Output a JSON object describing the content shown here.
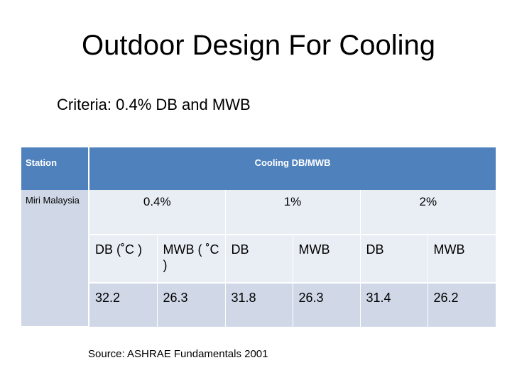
{
  "slide": {
    "title": "Outdoor Design For Cooling",
    "subtitle": "Criteria: 0.4% DB and  MWB",
    "source": "Source: ASHRAE Fundamentals 2001"
  },
  "table": {
    "header": {
      "station": "Station",
      "cooling": "Cooling  DB/MWB"
    },
    "station": "Miri Malaysia",
    "percentiles": [
      "0.4%",
      "1%",
      "2%"
    ],
    "subheaders": [
      "DB (˚C )",
      "MWB ( ˚C )",
      "DB",
      "MWB",
      "DB",
      "MWB"
    ],
    "values": [
      "32.2",
      "26.3",
      "31.8",
      "26.3",
      "31.4",
      "26.2"
    ]
  },
  "colors": {
    "header": "#4f81bd",
    "row_light": "#e9edf4",
    "row_dark": "#d0d8e8"
  }
}
